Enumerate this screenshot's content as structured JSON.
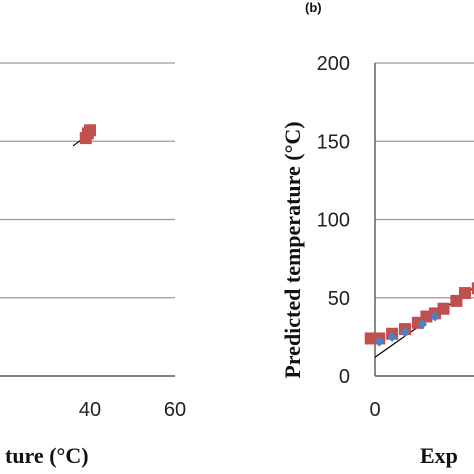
{
  "chart_data": [
    {
      "panel": "a",
      "type": "scatter",
      "xlabel": "ture (°C)",
      "x_ticks": [
        "40",
        "60"
      ],
      "xlim": [
        0,
        60
      ],
      "ylim": [
        0,
        200
      ],
      "grid": true,
      "series": [
        {
          "marker_color": "#c0504d",
          "marker": "square",
          "points": [
            {
              "x": 39,
              "y": 152
            },
            {
              "x": 39.5,
              "y": 155
            },
            {
              "x": 40,
              "y": 157
            }
          ]
        }
      ],
      "fit_line": {
        "color": "#000000",
        "from": {
          "x": 36,
          "y": 147
        },
        "to": {
          "x": 40,
          "y": 155
        }
      }
    },
    {
      "panel": "b",
      "panel_label": "(b)",
      "type": "scatter",
      "xlabel": "Exp",
      "ylabel": "Predicted temperature (°C)",
      "x_ticks": [
        "0"
      ],
      "y_ticks": [
        "0",
        "50",
        "100",
        "150",
        "200"
      ],
      "xlim": [
        0,
        60
      ],
      "ylim": [
        0,
        200
      ],
      "grid": true,
      "series": [
        {
          "marker_color": "#c0504d",
          "marker": "square",
          "points": [
            {
              "x": -1,
              "y": 24
            },
            {
              "x": 1,
              "y": 24
            },
            {
              "x": 4,
              "y": 27
            },
            {
              "x": 7,
              "y": 30
            },
            {
              "x": 10,
              "y": 34
            },
            {
              "x": 12,
              "y": 38
            },
            {
              "x": 14,
              "y": 40
            },
            {
              "x": 16,
              "y": 43
            },
            {
              "x": 19,
              "y": 48
            },
            {
              "x": 21,
              "y": 53
            },
            {
              "x": 24,
              "y": 56
            },
            {
              "x": 26,
              "y": 60
            }
          ]
        },
        {
          "marker_color": "#4f81bd",
          "marker": "diamond",
          "points": [
            {
              "x": 1,
              "y": 22
            },
            {
              "x": 4,
              "y": 25
            },
            {
              "x": 7,
              "y": 28
            },
            {
              "x": 11,
              "y": 33
            },
            {
              "x": 14,
              "y": 38
            }
          ]
        }
      ],
      "fit_line": {
        "color": "#000000",
        "from": {
          "x": 0,
          "y": 12
        },
        "to": {
          "x": 27,
          "y": 64
        }
      }
    }
  ]
}
